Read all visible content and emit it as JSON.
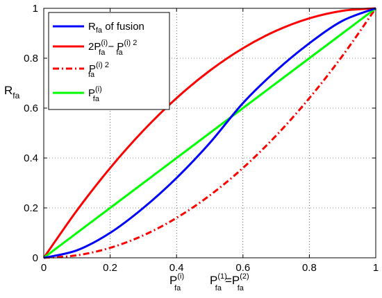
{
  "chart_data": {
    "type": "line",
    "xlim": [
      0,
      1
    ],
    "ylim": [
      0,
      1
    ],
    "grid": true,
    "legend_position": "top-left",
    "xticks": [
      "0",
      "0.2",
      "0.4",
      "0.6",
      "0.8",
      "1"
    ],
    "yticks": [
      "0",
      "0.2",
      "0.4",
      "0.6",
      "0.8",
      "1"
    ],
    "ylabel": {
      "main": "R",
      "sub": "fa"
    },
    "xlabel_parts": {
      "p_main": "P",
      "p_sup": "(i)",
      "p_sub": "fa",
      "eq_p1": "P",
      "eq_sup1": "(1)",
      "eq_sub1": "fa",
      "eq_equals": "=",
      "eq_p2": "P",
      "eq_sup2": "(2)",
      "eq_sub2": "fa"
    },
    "x": [
      0,
      0.1,
      0.2,
      0.3,
      0.4,
      0.5,
      0.6,
      0.7,
      0.8,
      0.9,
      1.0
    ],
    "series": [
      {
        "legend": {
          "main": "R",
          "sub": "fa",
          "rest": " of fusion"
        },
        "color": "#0000ff",
        "dash": "solid",
        "values": [
          0,
          0.03,
          0.1,
          0.2,
          0.32,
          0.46,
          0.62,
          0.75,
          0.86,
          0.95,
          1.0
        ]
      },
      {
        "legend": {
          "pre": "2P",
          "sup1": "(i)",
          "sub1": "fa",
          "mid": " − P",
          "sup2": "(i) 2",
          "sub2": "fa"
        },
        "color": "#ff0000",
        "dash": "solid",
        "values": [
          0,
          0.19,
          0.36,
          0.51,
          0.64,
          0.75,
          0.84,
          0.91,
          0.96,
          0.99,
          1.0
        ]
      },
      {
        "legend": {
          "pre": "P",
          "sup": "(i) 2",
          "sub": "fa"
        },
        "color": "#ff0000",
        "dash": "dashdot",
        "values": [
          0,
          0.01,
          0.04,
          0.09,
          0.16,
          0.25,
          0.36,
          0.49,
          0.64,
          0.81,
          1.0
        ]
      },
      {
        "legend": {
          "pre": "P",
          "sup": "(i)",
          "sub": "fa"
        },
        "color": "#00ff00",
        "dash": "solid",
        "values": [
          0,
          0.1,
          0.2,
          0.3,
          0.4,
          0.5,
          0.6,
          0.7,
          0.8,
          0.9,
          1.0
        ]
      }
    ]
  }
}
